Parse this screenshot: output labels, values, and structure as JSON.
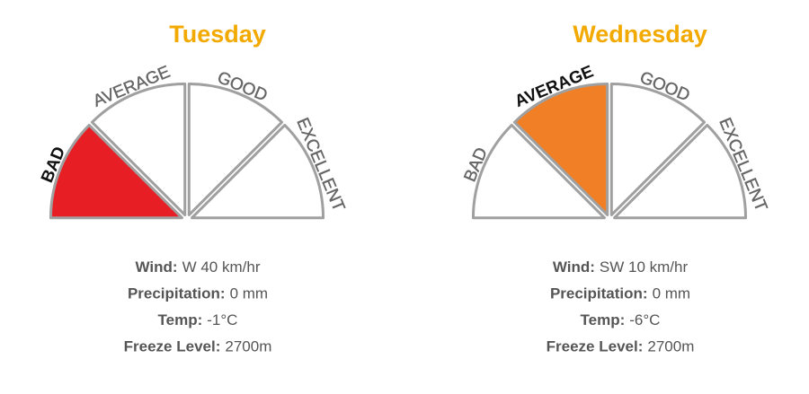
{
  "days": [
    {
      "title": "Tuesday",
      "segments": [
        "BAD",
        "AVERAGE",
        "GOOD",
        "EXCELLENT"
      ],
      "selected": 0,
      "selected_color": "#e81e25",
      "details": [
        {
          "label": "Wind:",
          "value": "W 40 km/hr"
        },
        {
          "label": "Precipitation:",
          "value": "0 mm"
        },
        {
          "label": "Temp:",
          "value": "-1°C"
        },
        {
          "label": "Freeze Level:",
          "value": "2700m"
        }
      ]
    },
    {
      "title": "Wednesday",
      "segments": [
        "BAD",
        "AVERAGE",
        "GOOD",
        "EXCELLENT"
      ],
      "selected": 1,
      "selected_color": "#f07f26",
      "details": [
        {
          "label": "Wind:",
          "value": "SW 10 km/hr"
        },
        {
          "label": "Precipitation:",
          "value": "0 mm"
        },
        {
          "label": "Temp:",
          "value": "-6°C"
        },
        {
          "label": "Freeze Level:",
          "value": "2700m"
        }
      ]
    }
  ]
}
